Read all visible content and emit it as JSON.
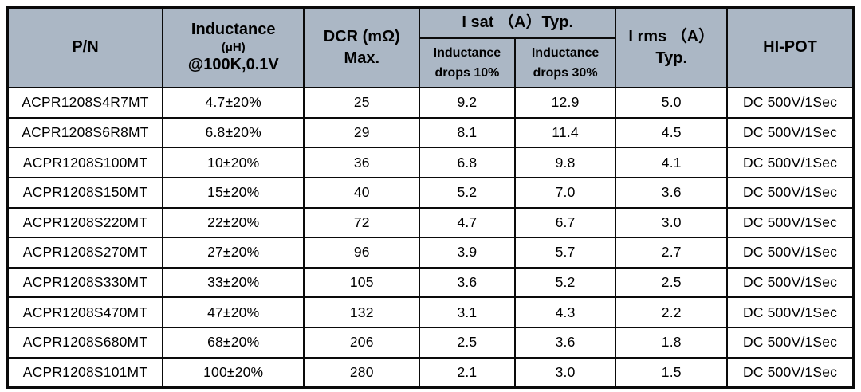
{
  "colors": {
    "header_bg": "#abb7c5",
    "border": "#0a0a0a",
    "row_bg": "#ffffff",
    "text": "#000000"
  },
  "header": {
    "pn": "P/N",
    "inductance_line1": "Inductance",
    "inductance_line2": "(μH)",
    "inductance_line3": "@100K,0.1V",
    "dcr_line1": "DCR (mΩ)",
    "dcr_line2": "Max.",
    "isat_title": "I sat （A）Typ.",
    "isat_sub1_line1": "Inductance",
    "isat_sub1_line2": "drops 10%",
    "isat_sub2_line1": "Inductance",
    "isat_sub2_line2": "drops 30%",
    "irms_line1": "I rms （A）",
    "irms_line2": "Typ.",
    "hipot": "HI-POT"
  },
  "rows": [
    {
      "pn": "ACPR1208S4R7MT",
      "inductance": "4.7±20%",
      "dcr": "25",
      "isat10": "9.2",
      "isat30": "12.9",
      "irms": "5.0",
      "hipot": "DC 500V/1Sec"
    },
    {
      "pn": "ACPR1208S6R8MT",
      "inductance": "6.8±20%",
      "dcr": "29",
      "isat10": "8.1",
      "isat30": "11.4",
      "irms": "4.5",
      "hipot": "DC 500V/1Sec"
    },
    {
      "pn": "ACPR1208S100MT",
      "inductance": "10±20%",
      "dcr": "36",
      "isat10": "6.8",
      "isat30": "9.8",
      "irms": "4.1",
      "hipot": "DC 500V/1Sec"
    },
    {
      "pn": "ACPR1208S150MT",
      "inductance": "15±20%",
      "dcr": "40",
      "isat10": "5.2",
      "isat30": "7.0",
      "irms": "3.6",
      "hipot": "DC 500V/1Sec"
    },
    {
      "pn": "ACPR1208S220MT",
      "inductance": "22±20%",
      "dcr": "72",
      "isat10": "4.7",
      "isat30": "6.7",
      "irms": "3.0",
      "hipot": "DC 500V/1Sec"
    },
    {
      "pn": "ACPR1208S270MT",
      "inductance": "27±20%",
      "dcr": "96",
      "isat10": "3.9",
      "isat30": "5.7",
      "irms": "2.7",
      "hipot": "DC 500V/1Sec"
    },
    {
      "pn": "ACPR1208S330MT",
      "inductance": "33±20%",
      "dcr": "105",
      "isat10": "3.6",
      "isat30": "5.2",
      "irms": "2.5",
      "hipot": "DC 500V/1Sec"
    },
    {
      "pn": "ACPR1208S470MT",
      "inductance": "47±20%",
      "dcr": "132",
      "isat10": "3.1",
      "isat30": "4.3",
      "irms": "2.2",
      "hipot": "DC 500V/1Sec"
    },
    {
      "pn": "ACPR1208S680MT",
      "inductance": "68±20%",
      "dcr": "206",
      "isat10": "2.5",
      "isat30": "3.6",
      "irms": "1.8",
      "hipot": "DC 500V/1Sec"
    },
    {
      "pn": "ACPR1208S101MT",
      "inductance": "100±20%",
      "dcr": "280",
      "isat10": "2.1",
      "isat30": "3.0",
      "irms": "1.5",
      "hipot": "DC 500V/1Sec"
    }
  ]
}
